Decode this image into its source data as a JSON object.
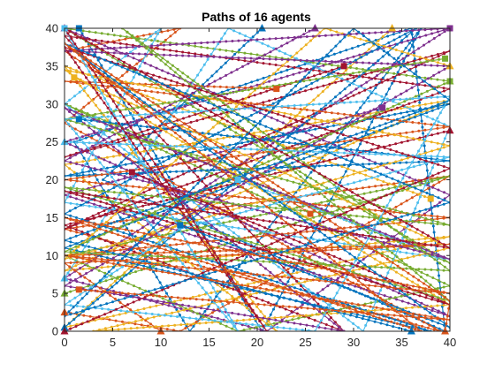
{
  "chart_data": {
    "type": "line",
    "title": "Paths of 16 agents",
    "xlabel": "",
    "ylabel": "",
    "xlim": [
      0,
      40
    ],
    "ylim": [
      0,
      40
    ],
    "xticks": [
      0,
      5,
      10,
      15,
      20,
      25,
      30,
      35,
      40
    ],
    "yticks": [
      0,
      5,
      10,
      15,
      20,
      25,
      30,
      35,
      40
    ],
    "xtick_labels": [
      "0",
      "5",
      "10",
      "15",
      "20",
      "25",
      "30",
      "35",
      "40"
    ],
    "ytick_labels": [
      "0",
      "5",
      "10",
      "15",
      "20",
      "25",
      "30",
      "35",
      "40"
    ],
    "grid": false,
    "box": true,
    "legend": "none",
    "marker_style": "small dots along paths, square at start, triangle at end",
    "colors": [
      "#0072BD",
      "#D95319",
      "#EDB120",
      "#7E2F8E",
      "#77AC30",
      "#4DBEEE",
      "#A2142F"
    ],
    "series": [
      {
        "color": "#0072BD",
        "x": [
          1.5,
          20.5,
          37.0,
          13.0,
          1.0,
          36.0,
          39.5,
          4.0,
          20.5
        ],
        "y": [
          40.0,
          0.0,
          40.0,
          0.0,
          25.0,
          40.0,
          0.0,
          20.0,
          40.0
        ]
      },
      {
        "color": "#D95319",
        "x": [
          25.5,
          0.0,
          12.0,
          0.0,
          39.0,
          0.0,
          40.0,
          12.0,
          0.0
        ],
        "y": [
          15.5,
          37.0,
          40.0,
          27.5,
          0.0,
          13.5,
          20.5,
          0.0,
          2.5
        ]
      },
      {
        "color": "#EDB120",
        "x": [
          38.0,
          0.0,
          22.0,
          0.0,
          40.0,
          0.0,
          40.0,
          0.0,
          34.0
        ],
        "y": [
          17.5,
          35.0,
          0.0,
          22.0,
          30.5,
          8.0,
          12.5,
          0.5,
          40.0
        ]
      },
      {
        "color": "#7E2F8E",
        "x": [
          33.0,
          0.0,
          40.0,
          0.0,
          40.0,
          0.0,
          21.0,
          40.0,
          0.0
        ],
        "y": [
          29.5,
          18.0,
          2.0,
          25.0,
          40.0,
          7.0,
          0.0,
          18.0,
          40.0
        ]
      },
      {
        "color": "#77AC30",
        "x": [
          40.0,
          0.0,
          40.0,
          0.0,
          40.0,
          18.0,
          0.0,
          40.0,
          0.0
        ],
        "y": [
          33.0,
          40.0,
          9.0,
          30.0,
          6.0,
          0.0,
          10.0,
          20.5,
          5.0
        ]
      },
      {
        "color": "#4DBEEE",
        "x": [
          18.0,
          40.0,
          0.0,
          10.0,
          0.0,
          31.0,
          40.0,
          17.0,
          0.0
        ],
        "y": [
          20.0,
          9.5,
          17.0,
          40.0,
          30.0,
          0.0,
          27.0,
          40.0,
          7.0
        ]
      },
      {
        "color": "#A2142F",
        "x": [
          29.0,
          0.0,
          40.0,
          0.0,
          40.0,
          0.0,
          29.0,
          0.0,
          40.0
        ],
        "y": [
          35.0,
          23.0,
          37.0,
          13.5,
          32.0,
          39.0,
          0.0,
          14.0,
          26.5
        ]
      },
      {
        "color": "#0072BD",
        "x": [
          1.5,
          40.0,
          0.0,
          40.0,
          0.0,
          38.0,
          0.0,
          36.5,
          0.0
        ],
        "y": [
          28.0,
          22.5,
          20.5,
          30.0,
          11.0,
          0.0,
          15.5,
          40.0,
          0.5
        ]
      },
      {
        "color": "#D95319",
        "x": [
          22.0,
          0.0,
          40.0,
          0.0,
          40.0,
          0.0,
          40.0,
          0.0,
          10.0
        ],
        "y": [
          32.0,
          33.0,
          27.0,
          20.0,
          15.0,
          10.0,
          11.5,
          9.0,
          0.0
        ]
      },
      {
        "color": "#EDB120",
        "x": [
          1.0,
          40.0,
          3.0,
          40.0,
          0.0,
          40.0,
          0.0,
          27.0,
          40.0
        ],
        "y": [
          33.5,
          11.0,
          0.0,
          3.5,
          34.5,
          24.5,
          9.5,
          40.0,
          35.0
        ]
      },
      {
        "color": "#7E2F8E",
        "x": [
          40.0,
          0.0,
          40.0,
          0.0,
          29.0,
          0.0,
          40.0,
          0.0,
          26.0
        ],
        "y": [
          40.0,
          37.0,
          35.0,
          6.0,
          0.0,
          29.5,
          9.5,
          22.5,
          40.0
        ]
      },
      {
        "color": "#77AC30",
        "x": [
          39.5,
          0.0,
          40.0,
          0.0,
          40.0,
          6.0,
          40.0,
          0.0,
          40.0
        ],
        "y": [
          36.0,
          28.0,
          14.0,
          19.0,
          4.0,
          40.0,
          8.0,
          10.5,
          33.0
        ]
      },
      {
        "color": "#4DBEEE",
        "x": [
          0.0,
          18.0,
          0.0,
          40.0,
          26.0,
          0.0,
          12.0,
          40.0,
          0.0
        ],
        "y": [
          40.0,
          0.0,
          28.0,
          31.0,
          0.0,
          3.5,
          13.5,
          23.0,
          25.0
        ]
      },
      {
        "color": "#A2142F",
        "x": [
          7.0,
          40.0,
          0.0,
          40.0,
          0.0,
          21.0,
          0.0,
          40.0,
          0.0
        ],
        "y": [
          21.0,
          3.5,
          18.5,
          11.0,
          40.0,
          0.0,
          37.5,
          21.5,
          0.0
        ]
      },
      {
        "color": "#0072BD",
        "x": [
          12.0,
          40.0,
          0.0,
          40.0,
          0.0,
          30.0,
          40.0,
          0.0,
          36.0
        ],
        "y": [
          14.0,
          0.5,
          38.0,
          17.0,
          2.0,
          40.0,
          30.5,
          12.0,
          0.0
        ]
      },
      {
        "color": "#D95319",
        "x": [
          1.5,
          40.0,
          0.0,
          40.0,
          0.0,
          37.0,
          0.0,
          40.0,
          39.5
        ],
        "y": [
          5.5,
          1.5,
          10.0,
          5.0,
          15.0,
          0.0,
          38.0,
          4.0,
          0.0
        ]
      }
    ]
  }
}
